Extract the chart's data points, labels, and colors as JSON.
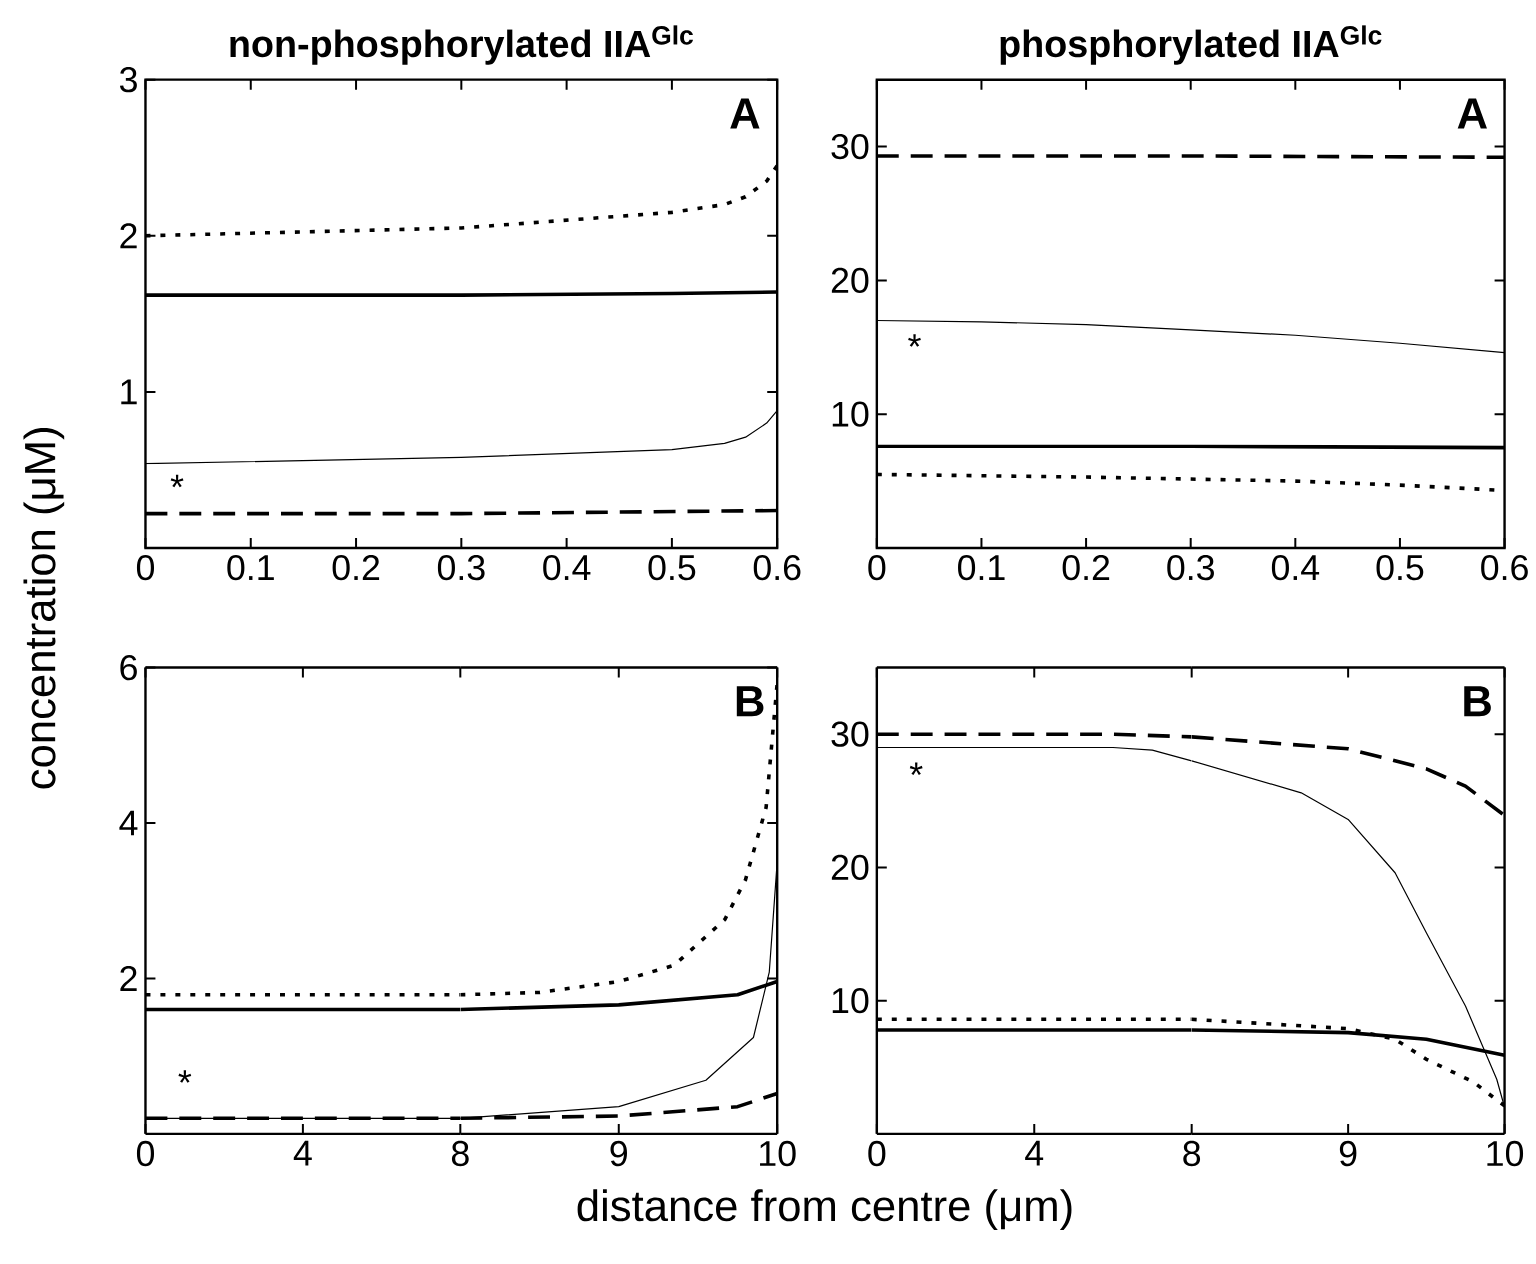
{
  "chart_data": [
    {
      "type": "line",
      "title": "non-phosphorylated IIA$^{Glc}$",
      "ylabel": "concentration (μM)",
      "xlim": [
        0,
        0.6
      ],
      "xticks": [
        0,
        0.1,
        0.2,
        0.3,
        0.4,
        0.5,
        0.6
      ],
      "ylim": [
        0,
        3
      ],
      "yticks": [
        1,
        2,
        3
      ],
      "annotations": [
        "A",
        "*"
      ],
      "series": [
        {
          "color": "#000000",
          "line_style": "solid",
          "x": [
            0,
            0.3,
            0.5,
            0.6
          ],
          "values": [
            1.62,
            1.62,
            1.63,
            1.64
          ]
        },
        {
          "color": "#000000",
          "line_style": "solid",
          "x": [
            0,
            0.3,
            0.5,
            0.55,
            0.57,
            0.59,
            0.6
          ],
          "values": [
            0.54,
            0.58,
            0.63,
            0.67,
            0.71,
            0.8,
            0.88
          ]
        },
        {
          "color": "#000000",
          "line_style": "dotted",
          "x": [
            0,
            0.3,
            0.5,
            0.55,
            0.57,
            0.59,
            0.6
          ],
          "values": [
            2.0,
            2.05,
            2.15,
            2.2,
            2.25,
            2.35,
            2.45
          ]
        },
        {
          "color": "#000000",
          "line_style": "dashed",
          "x": [
            0,
            0.3,
            0.6
          ],
          "values": [
            0.22,
            0.22,
            0.24
          ]
        }
      ]
    },
    {
      "type": "line",
      "title": "phosphorylated IIA$^{Glc}$",
      "xlim": [
        0,
        0.6
      ],
      "xticks": [
        0,
        0.1,
        0.2,
        0.3,
        0.4,
        0.5,
        0.6
      ],
      "ylim": [
        0,
        35
      ],
      "yticks": [
        10,
        20,
        30
      ],
      "annotations": [
        "A",
        "*"
      ],
      "series": [
        {
          "color": "#000000",
          "line_style": "solid",
          "x": [
            0,
            0.3,
            0.6
          ],
          "values": [
            7.6,
            7.6,
            7.5
          ]
        },
        {
          "color": "#000000",
          "line_style": "solid",
          "x": [
            0,
            0.1,
            0.2,
            0.3,
            0.4,
            0.5,
            0.6
          ],
          "values": [
            17.0,
            16.9,
            16.7,
            16.3,
            15.9,
            15.3,
            14.6
          ]
        },
        {
          "color": "#000000",
          "line_style": "dotted",
          "x": [
            0,
            0.2,
            0.4,
            0.5,
            0.6
          ],
          "values": [
            5.5,
            5.3,
            5.0,
            4.7,
            4.3
          ]
        },
        {
          "color": "#000000",
          "line_style": "dashed",
          "x": [
            0,
            0.3,
            0.6
          ],
          "values": [
            29.3,
            29.3,
            29.2
          ]
        }
      ]
    },
    {
      "type": "line",
      "xlim": [
        0,
        8
      ],
      "xticks": [
        0,
        4,
        8
      ],
      "ylim": [
        0,
        6
      ],
      "yticks": [
        2,
        4,
        6
      ],
      "annotations": [
        "*"
      ],
      "series": [
        {
          "color": "#000000",
          "line_style": "solid",
          "x": [
            0,
            4,
            8
          ],
          "values": [
            1.6,
            1.6,
            1.6
          ]
        },
        {
          "color": "#000000",
          "line_style": "solid",
          "x": [
            0,
            4,
            8
          ],
          "values": [
            0.2,
            0.2,
            0.2
          ]
        },
        {
          "color": "#000000",
          "line_style": "dotted",
          "x": [
            0,
            4,
            8
          ],
          "values": [
            1.79,
            1.79,
            1.79
          ]
        },
        {
          "color": "#000000",
          "line_style": "dashed",
          "x": [
            0,
            4,
            8
          ],
          "values": [
            0.2,
            0.2,
            0.2
          ]
        }
      ]
    },
    {
      "type": "line",
      "xlabel": "distance from centre (μm)",
      "xlim": [
        8,
        10
      ],
      "xticks": [
        9,
        10
      ],
      "ylim": [
        0,
        6
      ],
      "yticks": [
        2,
        4,
        6
      ],
      "tick_labels": "x",
      "annotations": [
        "B"
      ],
      "series": [
        {
          "color": "#000000",
          "line_style": "solid",
          "x": [
            8,
            9,
            9.75,
            10
          ],
          "values": [
            1.6,
            1.66,
            1.79,
            1.96
          ]
        },
        {
          "color": "#000000",
          "line_style": "solid",
          "x": [
            8,
            9,
            9.55,
            9.85,
            9.95,
            10
          ],
          "values": [
            0.2,
            0.35,
            0.69,
            1.24,
            2.08,
            3.5
          ]
        },
        {
          "color": "#000000",
          "line_style": "dotted",
          "x": [
            8,
            8.5,
            9,
            9.35,
            9.67,
            9.8,
            9.93,
            10
          ],
          "values": [
            1.79,
            1.82,
            1.96,
            2.17,
            2.76,
            3.27,
            4.2,
            5.8
          ]
        },
        {
          "color": "#000000",
          "line_style": "dashed",
          "x": [
            8,
            9,
            9.75,
            10
          ],
          "values": [
            0.2,
            0.23,
            0.35,
            0.52
          ]
        }
      ]
    },
    {
      "type": "line",
      "xlim": [
        0,
        8
      ],
      "xticks": [
        0,
        4,
        8
      ],
      "ylim": [
        0,
        35
      ],
      "yticks": [
        10,
        20,
        30
      ],
      "annotations": [
        "*"
      ],
      "series": [
        {
          "color": "#000000",
          "line_style": "solid",
          "x": [
            0,
            4,
            8
          ],
          "values": [
            7.8,
            7.8,
            7.8
          ]
        },
        {
          "color": "#000000",
          "line_style": "solid",
          "x": [
            0,
            4,
            6,
            7,
            8
          ],
          "values": [
            29.0,
            29.0,
            29.0,
            28.8,
            28.0
          ]
        },
        {
          "color": "#000000",
          "line_style": "dotted",
          "x": [
            0,
            4,
            8
          ],
          "values": [
            8.6,
            8.6,
            8.6
          ]
        },
        {
          "color": "#000000",
          "line_style": "dashed",
          "x": [
            0,
            6,
            8
          ],
          "values": [
            30.0,
            30.0,
            29.8
          ]
        }
      ]
    },
    {
      "type": "line",
      "xlim": [
        8,
        10
      ],
      "xticks": [
        9,
        10
      ],
      "ylim": [
        0,
        35
      ],
      "yticks": [
        10,
        20,
        30
      ],
      "tick_labels": "x",
      "annotations": [
        "B"
      ],
      "series": [
        {
          "color": "#000000",
          "line_style": "solid",
          "x": [
            8,
            9,
            9.5,
            10
          ],
          "values": [
            7.8,
            7.6,
            7.1,
            5.9
          ]
        },
        {
          "color": "#000000",
          "line_style": "solid",
          "x": [
            8,
            8.7,
            9,
            9.3,
            9.5,
            9.75,
            9.95,
            10
          ],
          "values": [
            28.0,
            25.6,
            23.6,
            19.6,
            15.1,
            9.6,
            4.1,
            2.0
          ]
        },
        {
          "color": "#000000",
          "line_style": "dotted",
          "x": [
            8,
            9,
            9.3,
            9.5,
            9.8,
            10
          ],
          "values": [
            8.6,
            7.9,
            7.1,
            5.6,
            3.9,
            2.1
          ]
        },
        {
          "color": "#000000",
          "line_style": "dashed",
          "x": [
            8,
            9,
            9.5,
            9.75,
            10
          ],
          "values": [
            29.8,
            28.9,
            27.4,
            26.1,
            23.9
          ]
        }
      ]
    }
  ]
}
